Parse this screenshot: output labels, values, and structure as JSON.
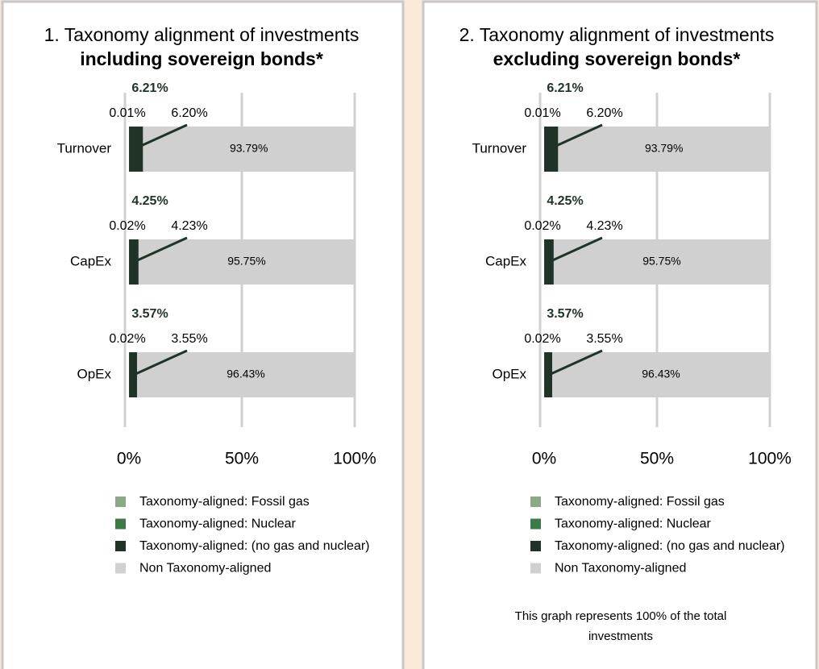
{
  "chart_data": [
    {
      "type": "stacked-bar-horizontal",
      "title": "1. Taxonomy alignment of investments",
      "subtitle": "including sovereign bonds*",
      "categories": [
        "Turnover",
        "CapEx",
        "OpEx"
      ],
      "series": [
        {
          "name": "Taxonomy-aligned: Fossil gas",
          "color": "#8aa984",
          "values": [
            0,
            0,
            0
          ]
        },
        {
          "name": "Taxonomy-aligned: Nuclear",
          "color": "#3e7a47",
          "values": [
            0.01,
            0.02,
            0.02
          ],
          "value_labels": [
            "0.01%",
            "0.02%",
            "0.02%"
          ]
        },
        {
          "name": "Taxonomy-aligned: (no gas and nuclear)",
          "color": "#1f3326",
          "values": [
            6.2,
            4.23,
            3.55
          ],
          "value_labels": [
            "6.20%",
            "4.23%",
            "3.55%"
          ]
        },
        {
          "name": "Non Taxonomy-aligned",
          "color": "#d0d0d0",
          "values": [
            93.79,
            95.75,
            96.43
          ],
          "value_labels": [
            "93.79%",
            "95.75%",
            "96.43%"
          ]
        }
      ],
      "aligned_totals": {
        "values": [
          6.21,
          4.25,
          3.57
        ],
        "value_labels": [
          "6.21%",
          "4.25%",
          "3.57%"
        ]
      },
      "xlim": [
        0,
        100
      ],
      "xticks": [
        {
          "value": 0,
          "label": "0%"
        },
        {
          "value": 50,
          "label": "50%"
        },
        {
          "value": 100,
          "label": "100%"
        }
      ],
      "grid": true
    },
    {
      "type": "stacked-bar-horizontal",
      "title": "2. Taxonomy alignment of investments",
      "subtitle": "excluding sovereign bonds*",
      "categories": [
        "Turnover",
        "CapEx",
        "OpEx"
      ],
      "series": [
        {
          "name": "Taxonomy-aligned: Fossil gas",
          "color": "#8aa984",
          "values": [
            0,
            0,
            0
          ]
        },
        {
          "name": "Taxonomy-aligned: Nuclear",
          "color": "#3e7a47",
          "values": [
            0.01,
            0.02,
            0.02
          ],
          "value_labels": [
            "0.01%",
            "0.02%",
            "0.02%"
          ]
        },
        {
          "name": "Taxonomy-aligned: (no gas and nuclear)",
          "color": "#1f3326",
          "values": [
            6.2,
            4.23,
            3.55
          ],
          "value_labels": [
            "6.20%",
            "4.23%",
            "3.55%"
          ]
        },
        {
          "name": "Non Taxonomy-aligned",
          "color": "#d0d0d0",
          "values": [
            93.79,
            95.75,
            96.43
          ],
          "value_labels": [
            "93.79%",
            "95.75%",
            "96.43%"
          ]
        }
      ],
      "aligned_totals": {
        "values": [
          6.21,
          4.25,
          3.57
        ],
        "value_labels": [
          "6.21%",
          "4.25%",
          "3.57%"
        ]
      },
      "xlim": [
        0,
        100
      ],
      "xticks": [
        {
          "value": 0,
          "label": "0%"
        },
        {
          "value": 50,
          "label": "50%"
        },
        {
          "value": 100,
          "label": "100%"
        }
      ],
      "grid": true,
      "footnote": [
        "This graph represents 100% of the total",
        "investments"
      ]
    }
  ]
}
